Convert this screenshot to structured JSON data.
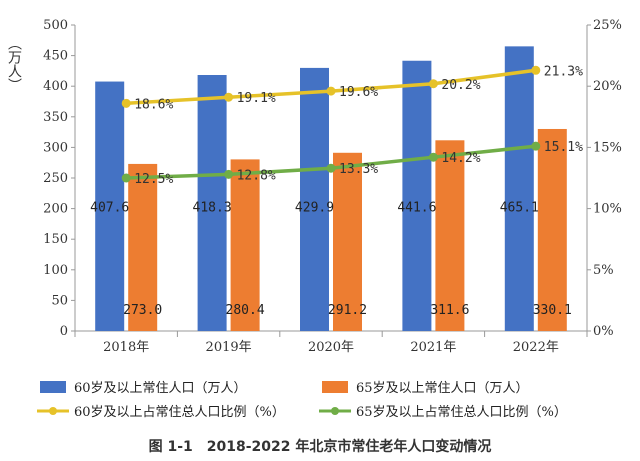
{
  "caption": "图 1-1　2018-2022 年北京市常住老年人口变动情况",
  "chart_data": {
    "type": "bar",
    "categories": [
      "2018年",
      "2019年",
      "2020年",
      "2021年",
      "2022年"
    ],
    "ylabel": "（万人）",
    "ylim": [
      0,
      500
    ],
    "yticks": [
      "0",
      "50",
      "100",
      "150",
      "200",
      "250",
      "300",
      "350",
      "400",
      "450",
      "500"
    ],
    "y2lim": [
      0,
      25
    ],
    "y2ticks": [
      "0%",
      "5%",
      "10%",
      "15%",
      "20%",
      "25%"
    ],
    "grid": false,
    "legend_position": "bottom",
    "series": [
      {
        "name": "60岁及以上常住人口（万人）",
        "type": "bar",
        "axis": "left",
        "color": "#4472C4",
        "values": [
          407.6,
          418.3,
          429.9,
          441.6,
          465.1
        ],
        "labels": [
          "407.6",
          "418.3",
          "429.9",
          "441.6",
          "465.1"
        ]
      },
      {
        "name": "65岁及以上常住人口（万人）",
        "type": "bar",
        "axis": "left",
        "color": "#ED7D31",
        "values": [
          273.0,
          280.4,
          291.2,
          311.6,
          330.1
        ],
        "labels": [
          "273.0",
          "280.4",
          "291.2",
          "311.6",
          "330.1"
        ]
      },
      {
        "name": "60岁及以上占常住总人口比例（%）",
        "type": "line",
        "axis": "right",
        "color": "#E6C229",
        "values": [
          18.6,
          19.1,
          19.6,
          20.2,
          21.3
        ],
        "labels": [
          "18.6%",
          "19.1%",
          "19.6%",
          "20.2%",
          "21.3%"
        ]
      },
      {
        "name": "65岁及以上占常住总人口比例（%）",
        "type": "line",
        "axis": "right",
        "color": "#70AD47",
        "values": [
          12.5,
          12.8,
          13.3,
          14.2,
          15.1
        ],
        "labels": [
          "12.5%",
          "12.8%",
          "13.3%",
          "14.2%",
          "15.1%"
        ]
      }
    ]
  }
}
